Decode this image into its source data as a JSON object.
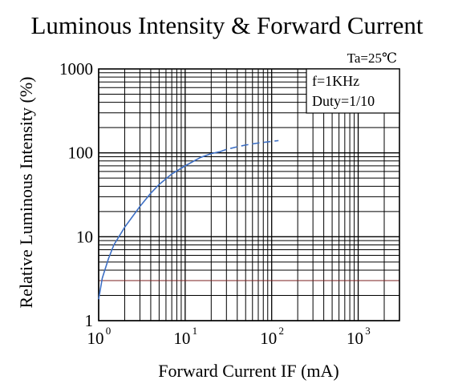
{
  "chart_data": {
    "type": "line",
    "title": "Luminous Intensity & Forward Current",
    "xlabel": "Forward Current IF (mA)",
    "ylabel": "Relative Luminous Intensity (%)",
    "x_scale": "log",
    "y_scale": "log",
    "xlim": [
      1,
      3000
    ],
    "ylim": [
      1,
      1000
    ],
    "x_ticks": [
      {
        "value": 1,
        "base": "10",
        "exp": "0"
      },
      {
        "value": 10,
        "base": "10",
        "exp": "1"
      },
      {
        "value": 100,
        "base": "10",
        "exp": "2"
      },
      {
        "value": 1000,
        "base": "10",
        "exp": "3"
      }
    ],
    "y_ticks": [
      {
        "value": 1,
        "label": "1"
      },
      {
        "value": 10,
        "label": "10"
      },
      {
        "value": 100,
        "label": "100"
      },
      {
        "value": 1000,
        "label": "1000"
      }
    ],
    "grid": true,
    "annotations": {
      "temperature": "Ta=25℃",
      "frequency": "f=1KHz",
      "duty": "Duty=1/10"
    },
    "series": [
      {
        "color": "#3d6fc4",
        "solid": {
          "x": [
            1,
            1.1,
            1.3,
            1.5,
            2,
            3,
            4,
            5,
            7,
            10,
            15,
            20,
            25
          ],
          "y": [
            1.8,
            3.2,
            5.5,
            8,
            13,
            23,
            33,
            42,
            56,
            70,
            88,
            98,
            103
          ]
        },
        "dashed": {
          "x": [
            25,
            30,
            40,
            50,
            70,
            100,
            120
          ],
          "y": [
            103,
            110,
            118,
            124,
            131,
            137,
            140
          ]
        }
      }
    ],
    "colors": {
      "grid_major": "#000000",
      "grid_minor": "#000000",
      "grid_accent": "#7a1f1f",
      "curve": "#3d6fc4"
    }
  }
}
